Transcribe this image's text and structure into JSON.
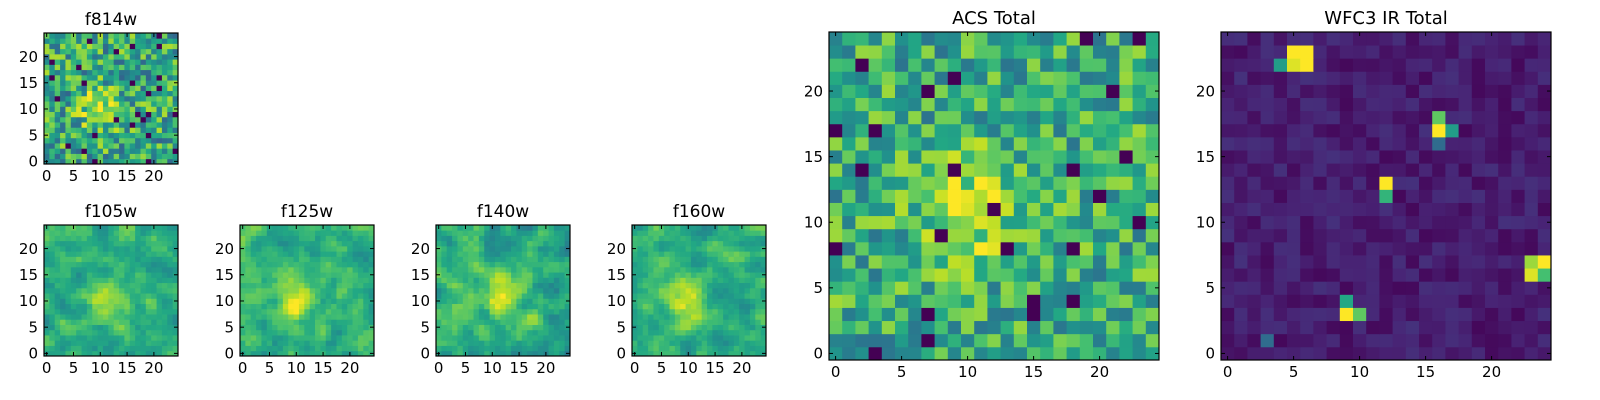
{
  "figure": {
    "description_colormap": "viridis",
    "colors": {
      "viridis_low": "#440154",
      "viridis_mid": "#21918c",
      "viridis_high": "#fde725",
      "axis": "#000000",
      "background": "#ffffff"
    }
  },
  "chart_data": [
    {
      "type": "heatmap",
      "title": "f814w",
      "grid_size": 25,
      "xlim": [
        -0.5,
        24.5
      ],
      "ylim": [
        -0.5,
        24.5
      ],
      "xticks": [
        0,
        5,
        10,
        15,
        20
      ],
      "yticks": [
        0,
        5,
        10,
        15,
        20
      ],
      "colormap": "viridis",
      "pattern": "noisy_with_faint_central_source",
      "source_center": [
        10,
        10
      ],
      "background_level": 0.6,
      "noise": 0.28,
      "seed": 11
    },
    {
      "type": "heatmap",
      "title": "f105w",
      "grid_size": 25,
      "xlim": [
        -0.5,
        24.5
      ],
      "ylim": [
        -0.5,
        24.5
      ],
      "xticks": [
        0,
        5,
        10,
        15,
        20
      ],
      "yticks": [
        0,
        5,
        10,
        15,
        20
      ],
      "colormap": "viridis",
      "pattern": "smooth_noise_with_central_source",
      "source_center": [
        11,
        10
      ],
      "background_level": 0.62,
      "noise": 0.22,
      "seed": 23
    },
    {
      "type": "heatmap",
      "title": "f125w",
      "grid_size": 25,
      "xlim": [
        -0.5,
        24.5
      ],
      "ylim": [
        -0.5,
        24.5
      ],
      "xticks": [
        0,
        5,
        10,
        15,
        20
      ],
      "yticks": [
        0,
        5,
        10,
        15,
        20
      ],
      "colormap": "viridis",
      "pattern": "smooth_noise_with_central_source",
      "source_center": [
        10,
        10
      ],
      "background_level": 0.64,
      "noise": 0.22,
      "seed": 37
    },
    {
      "type": "heatmap",
      "title": "f140w",
      "grid_size": 25,
      "xlim": [
        -0.5,
        24.5
      ],
      "ylim": [
        -0.5,
        24.5
      ],
      "xticks": [
        0,
        5,
        10,
        15,
        20
      ],
      "yticks": [
        0,
        5,
        10,
        15,
        20
      ],
      "colormap": "viridis",
      "pattern": "smooth_noise_with_central_source",
      "source_center": [
        12,
        11
      ],
      "background_level": 0.63,
      "noise": 0.24,
      "seed": 53
    },
    {
      "type": "heatmap",
      "title": "f160w",
      "grid_size": 25,
      "xlim": [
        -0.5,
        24.5
      ],
      "ylim": [
        -0.5,
        24.5
      ],
      "xticks": [
        0,
        5,
        10,
        15,
        20
      ],
      "yticks": [
        0,
        5,
        10,
        15,
        20
      ],
      "colormap": "viridis",
      "pattern": "smooth_noise_with_central_source",
      "source_center": [
        9,
        10
      ],
      "background_level": 0.62,
      "noise": 0.22,
      "seed": 71
    },
    {
      "type": "heatmap",
      "title": "ACS Total",
      "grid_size": 25,
      "xlim": [
        -0.5,
        24.5
      ],
      "ylim": [
        -0.5,
        24.5
      ],
      "xticks": [
        0,
        5,
        10,
        15,
        20
      ],
      "yticks": [
        0,
        5,
        10,
        15,
        20
      ],
      "colormap": "viridis",
      "pattern": "noisy_with_faint_central_source",
      "source_center": [
        10,
        11
      ],
      "background_level": 0.62,
      "noise": 0.24,
      "seed": 97
    },
    {
      "type": "heatmap",
      "title": "WFC3 IR Total",
      "grid_size": 25,
      "xlim": [
        -0.5,
        24.5
      ],
      "ylim": [
        -0.5,
        24.5
      ],
      "xticks": [
        0,
        5,
        10,
        15,
        20
      ],
      "yticks": [
        0,
        5,
        10,
        15,
        20
      ],
      "colormap": "viridis",
      "pattern": "dark_background_with_hot_pixels",
      "background_level": 0.08,
      "noise": 0.06,
      "seed": 131,
      "hot_pixels": [
        {
          "x": 5,
          "y": 23,
          "value": 1.0
        },
        {
          "x": 6,
          "y": 23,
          "value": 1.0
        },
        {
          "x": 5,
          "y": 22,
          "value": 0.95
        },
        {
          "x": 6,
          "y": 22,
          "value": 1.0
        },
        {
          "x": 4,
          "y": 22,
          "value": 0.55
        },
        {
          "x": 16,
          "y": 18,
          "value": 0.75
        },
        {
          "x": 16,
          "y": 17,
          "value": 1.0
        },
        {
          "x": 17,
          "y": 17,
          "value": 0.55
        },
        {
          "x": 16,
          "y": 16,
          "value": 0.35
        },
        {
          "x": 12,
          "y": 13,
          "value": 1.0
        },
        {
          "x": 12,
          "y": 12,
          "value": 0.65
        },
        {
          "x": 23,
          "y": 7,
          "value": 0.85
        },
        {
          "x": 24,
          "y": 7,
          "value": 1.0
        },
        {
          "x": 23,
          "y": 6,
          "value": 0.95
        },
        {
          "x": 24,
          "y": 6,
          "value": 0.7
        },
        {
          "x": 9,
          "y": 4,
          "value": 0.6
        },
        {
          "x": 9,
          "y": 3,
          "value": 1.0
        },
        {
          "x": 10,
          "y": 3,
          "value": 0.75
        },
        {
          "x": 3,
          "y": 1,
          "value": 0.35
        }
      ]
    }
  ]
}
